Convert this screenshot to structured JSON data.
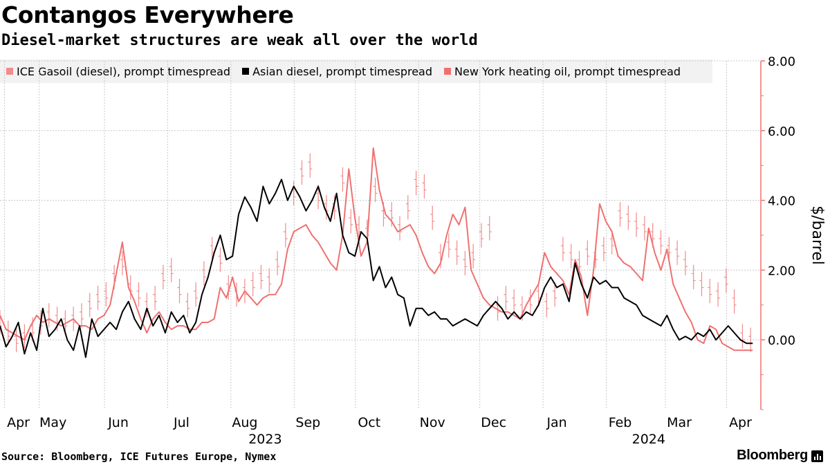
{
  "header": {
    "title": "Contangos Everywhere",
    "subtitle": "Diesel-market structures are weak all over the world"
  },
  "footer": {
    "source": "Source: Bloomberg, ICE Futures Europe, Nymex",
    "brand": "Bloomberg"
  },
  "colors": {
    "gasoil": "#f28b8b",
    "asian": "#000000",
    "heating": "#f07070",
    "axis": "#f07070",
    "grid": "#c8c8c8"
  },
  "chart_data": {
    "type": "line",
    "title": "Contangos Everywhere",
    "subtitle": "Diesel-market structures are weak all over the world",
    "ylabel": "$/barrel",
    "ylim": [
      -2,
      8
    ],
    "yticks": [
      0,
      2,
      4,
      6,
      8
    ],
    "ytick_labels": [
      "0.00",
      "2.00",
      "4.00",
      "6.00",
      "8.00"
    ],
    "grid": true,
    "legend_position": "top",
    "x_range": [
      0,
      373
    ],
    "x_months": [
      {
        "label": "Apr",
        "day": 9
      },
      {
        "label": "May",
        "day": 26
      },
      {
        "label": "Jun",
        "day": 58
      },
      {
        "label": "Jul",
        "day": 89
      },
      {
        "label": "Aug",
        "day": 120
      },
      {
        "label": "Sep",
        "day": 151
      },
      {
        "label": "Oct",
        "day": 181
      },
      {
        "label": "Nov",
        "day": 212
      },
      {
        "label": "Dec",
        "day": 242
      },
      {
        "label": "Jan",
        "day": 273
      },
      {
        "label": "Feb",
        "day": 304
      },
      {
        "label": "Mar",
        "day": 333
      },
      {
        "label": "Apr",
        "day": 363
      }
    ],
    "x_years": [
      {
        "label": "2023",
        "day": 130
      },
      {
        "label": "2024",
        "day": 318
      }
    ],
    "series": [
      {
        "name": "ICE Gasoil (diesel), prompt timespread",
        "style": "bars",
        "x": [
          0,
          4,
          8,
          12,
          16,
          20,
          24,
          28,
          32,
          36,
          40,
          44,
          48,
          52,
          56,
          60,
          64,
          68,
          72,
          76,
          80,
          84,
          88,
          92,
          96,
          100,
          104,
          108,
          112,
          116,
          120,
          124,
          128,
          132,
          136,
          140,
          144,
          148,
          152,
          156,
          160,
          164,
          168,
          172,
          176,
          180,
          184,
          188,
          192,
          196,
          200,
          204,
          208,
          212,
          216,
          220,
          224,
          228,
          232,
          236,
          240,
          244,
          248,
          252,
          256,
          260,
          264,
          268,
          272,
          276,
          280,
          284,
          288,
          292,
          296,
          300,
          304,
          308,
          312,
          316,
          320,
          324,
          328,
          332,
          336,
          340,
          344,
          348,
          352,
          356,
          360,
          364,
          368
        ],
        "values": [
          0.5,
          0.2,
          0.0,
          0.1,
          0.3,
          0.5,
          0.7,
          0.6,
          0.5,
          0.6,
          0.7,
          1.0,
          1.2,
          1.3,
          1.8,
          2.2,
          1.5,
          1.3,
          1.0,
          1.2,
          1.8,
          2.0,
          1.4,
          1.0,
          1.3,
          1.9,
          2.6,
          2.3,
          1.5,
          1.3,
          1.4,
          1.6,
          1.8,
          1.7,
          2.2,
          3.0,
          4.2,
          4.8,
          5.0,
          4.1,
          3.8,
          3.8,
          4.6,
          3.4,
          3.2,
          3.1,
          4.3,
          3.6,
          3.6,
          3.2,
          3.8,
          4.5,
          4.4,
          3.5,
          2.4,
          2.7,
          2.5,
          2.2,
          2.4,
          3.0,
          3.2,
          0.9,
          1.2,
          1.1,
          0.9,
          1.1,
          1.3,
          1.0,
          1.3,
          2.6,
          2.4,
          2.2,
          2.5,
          2.4,
          2.6,
          2.8,
          3.6,
          3.5,
          3.3,
          3.2,
          3.0,
          2.8,
          2.6,
          2.5,
          2.2,
          1.8,
          1.6,
          1.4,
          1.3,
          1.7,
          1.1,
          0.1,
          0.0
        ]
      },
      {
        "name": "Asian diesel, prompt timespread",
        "style": "line",
        "x": [
          0,
          3,
          6,
          9,
          12,
          15,
          18,
          21,
          24,
          27,
          30,
          33,
          36,
          39,
          42,
          45,
          48,
          51,
          54,
          57,
          60,
          63,
          66,
          69,
          72,
          75,
          78,
          81,
          84,
          87,
          90,
          93,
          96,
          99,
          102,
          105,
          108,
          111,
          114,
          117,
          120,
          123,
          126,
          129,
          132,
          135,
          138,
          141,
          144,
          147,
          150,
          153,
          156,
          159,
          162,
          165,
          168,
          171,
          174,
          177,
          180,
          183,
          186,
          189,
          192,
          195,
          198,
          201,
          204,
          207,
          210,
          213,
          216,
          219,
          222,
          225,
          228,
          231,
          234,
          237,
          240,
          243,
          246,
          249,
          252,
          255,
          258,
          261,
          264,
          267,
          270,
          273,
          276,
          279,
          282,
          285,
          288,
          291,
          294,
          297,
          300,
          303,
          306,
          309,
          312,
          315,
          318,
          321,
          324,
          327,
          330,
          333,
          336,
          339,
          342,
          345,
          348,
          351,
          354,
          357,
          360,
          363,
          366,
          369
        ],
        "values": [
          0.4,
          -0.2,
          0.1,
          0.5,
          -0.4,
          0.2,
          -0.3,
          0.9,
          0.1,
          0.3,
          0.6,
          0.0,
          -0.3,
          0.4,
          -0.5,
          0.6,
          0.1,
          0.3,
          0.5,
          0.3,
          0.8,
          1.1,
          0.6,
          0.3,
          0.9,
          0.4,
          0.7,
          0.2,
          0.8,
          0.5,
          0.7,
          0.2,
          0.5,
          1.3,
          1.8,
          2.5,
          3.0,
          2.3,
          2.4,
          3.6,
          4.1,
          3.8,
          3.4,
          4.4,
          3.9,
          4.2,
          4.6,
          4.0,
          4.4,
          4.1,
          3.7,
          4.0,
          4.4,
          3.8,
          3.4,
          4.2,
          3.0,
          2.5,
          2.4,
          3.1,
          2.9,
          1.7,
          2.1,
          1.5,
          1.8,
          1.3,
          1.2,
          0.4,
          0.9,
          0.9,
          0.7,
          0.8,
          0.6,
          0.6,
          0.4,
          0.5,
          0.6,
          0.5,
          0.4,
          0.7,
          0.9,
          1.1,
          0.9,
          0.6,
          0.8,
          0.6,
          0.8,
          0.7,
          1.0,
          1.5,
          1.8,
          1.5,
          1.6,
          1.1,
          2.2,
          1.6,
          1.2,
          1.8,
          1.6,
          1.7,
          1.5,
          1.5,
          1.2,
          1.1,
          1.0,
          0.7,
          0.6,
          0.5,
          0.4,
          0.7,
          0.3,
          0.0,
          0.1,
          0.0,
          0.2,
          0.1,
          0.3,
          0.0,
          0.2,
          0.4,
          0.2,
          0.0,
          -0.1,
          -0.1
        ]
      },
      {
        "name": "New York heating oil, prompt timespread",
        "style": "line",
        "x": [
          0,
          3,
          6,
          9,
          12,
          15,
          18,
          21,
          24,
          27,
          30,
          33,
          36,
          39,
          42,
          45,
          48,
          51,
          54,
          57,
          60,
          63,
          66,
          69,
          72,
          75,
          78,
          81,
          84,
          87,
          90,
          93,
          96,
          99,
          102,
          105,
          108,
          111,
          114,
          117,
          120,
          123,
          126,
          129,
          132,
          135,
          138,
          141,
          144,
          147,
          150,
          153,
          156,
          159,
          162,
          165,
          168,
          171,
          174,
          177,
          180,
          183,
          186,
          189,
          192,
          195,
          198,
          201,
          204,
          207,
          210,
          213,
          216,
          219,
          222,
          225,
          228,
          231,
          234,
          237,
          240,
          243,
          246,
          249,
          252,
          255,
          258,
          261,
          264,
          267,
          270,
          273,
          276,
          279,
          282,
          285,
          288,
          291,
          294,
          297,
          300,
          303,
          306,
          309,
          312,
          315,
          318,
          321,
          324,
          327,
          330,
          333,
          336,
          339,
          342,
          345,
          348,
          351,
          354,
          357,
          360,
          363,
          366,
          369
        ],
        "values": [
          0.7,
          0.3,
          0.2,
          0.1,
          0.0,
          0.4,
          0.7,
          0.5,
          0.6,
          0.5,
          0.4,
          0.5,
          0.6,
          0.4,
          0.4,
          0.3,
          0.6,
          0.7,
          1.0,
          1.9,
          2.8,
          1.5,
          1.1,
          0.6,
          0.2,
          0.6,
          0.8,
          0.5,
          0.3,
          0.4,
          0.4,
          0.3,
          0.3,
          0.5,
          0.5,
          0.6,
          1.5,
          1.2,
          1.8,
          1.1,
          1.4,
          1.2,
          1.0,
          1.2,
          1.3,
          1.3,
          1.6,
          2.6,
          3.1,
          3.2,
          3.3,
          3.0,
          2.8,
          2.5,
          2.2,
          2.0,
          3.0,
          4.9,
          3.5,
          2.4,
          2.8,
          5.5,
          4.3,
          3.6,
          3.4,
          3.1,
          3.2,
          3.3,
          3.0,
          2.5,
          2.1,
          1.9,
          2.2,
          3.0,
          3.6,
          3.3,
          3.8,
          2.0,
          1.6,
          1.2,
          1.0,
          0.9,
          0.8,
          0.8,
          0.7,
          0.6,
          1.0,
          1.3,
          1.6,
          2.5,
          2.1,
          1.9,
          1.7,
          1.3,
          2.3,
          1.8,
          0.7,
          2.0,
          3.9,
          3.4,
          3.1,
          2.4,
          2.2,
          2.1,
          1.9,
          1.7,
          3.2,
          2.5,
          2.0,
          2.6,
          1.6,
          1.2,
          0.8,
          0.5,
          0.0,
          -0.1,
          0.4,
          0.3,
          -0.1,
          -0.2,
          -0.3,
          -0.3,
          -0.3,
          -0.3
        ]
      }
    ]
  }
}
